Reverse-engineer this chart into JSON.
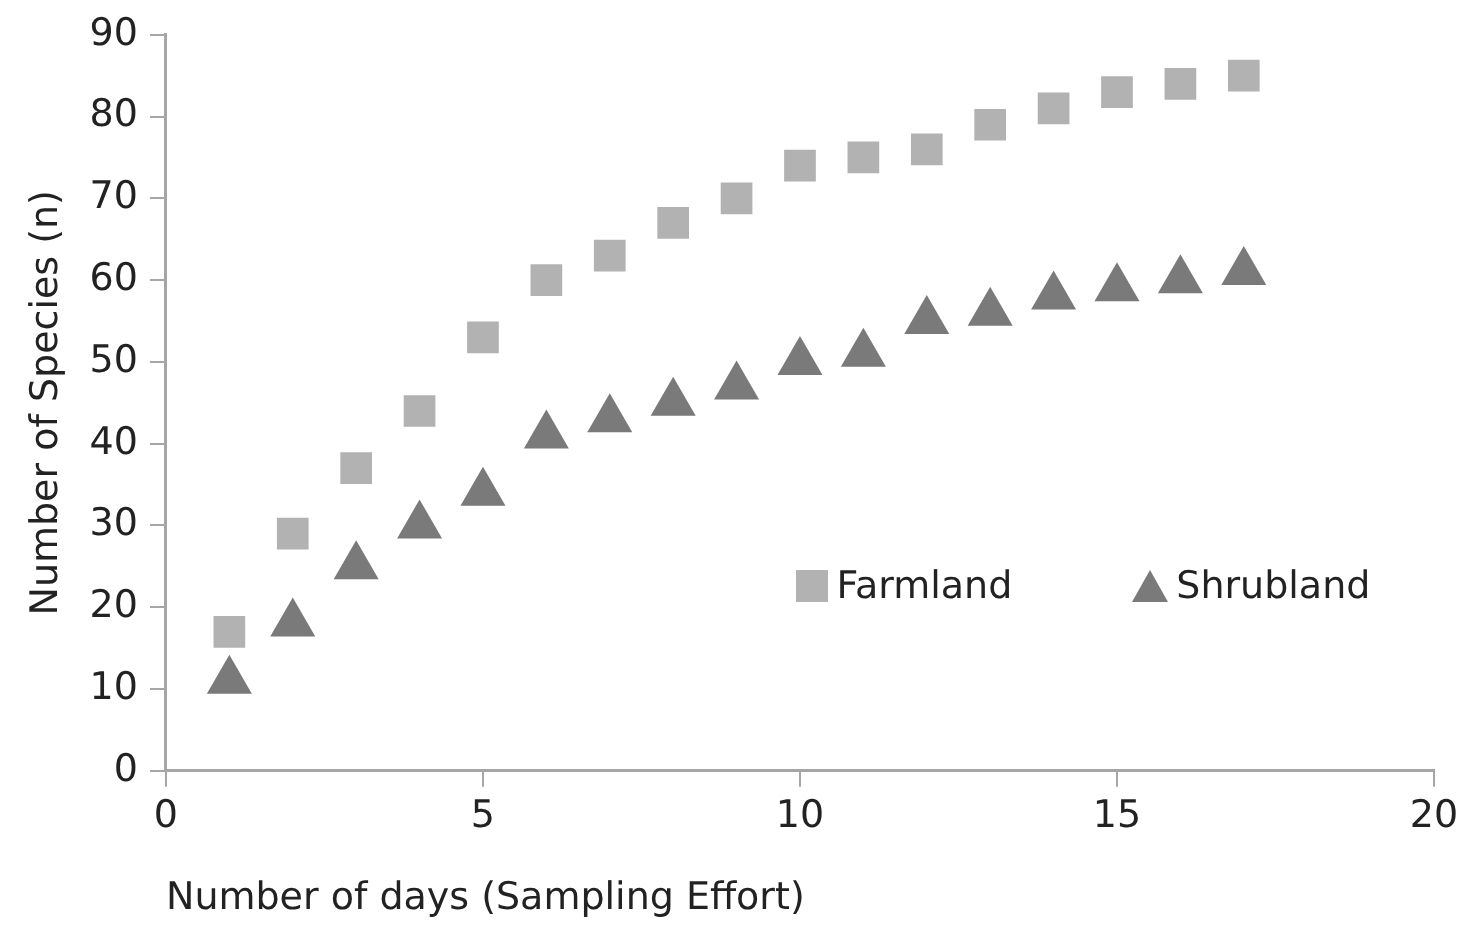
{
  "chart_data": {
    "type": "scatter",
    "xlabel": "Number of days (Sampling Effort)",
    "ylabel": "Number of Species (n)",
    "x": [
      1,
      2,
      3,
      4,
      5,
      6,
      7,
      8,
      9,
      10,
      11,
      12,
      13,
      14,
      15,
      16,
      17
    ],
    "series": [
      {
        "name": "Farmland",
        "color": "#b2b2b2",
        "marker": "square",
        "values": [
          17,
          29,
          37,
          44,
          53,
          60,
          63,
          67,
          70,
          74,
          75,
          76,
          79,
          81,
          83,
          84,
          85
        ]
      },
      {
        "name": "Shrubland",
        "color": "#7a7a7a",
        "marker": "triangle",
        "values": [
          11,
          18,
          25,
          30,
          34,
          41,
          43,
          45,
          47,
          50,
          51,
          55,
          56,
          58,
          59,
          60,
          61
        ]
      }
    ],
    "xlim": [
      0,
      20
    ],
    "xticks": [
      0,
      5,
      10,
      15,
      20
    ],
    "ylim": [
      0,
      90
    ],
    "yticks": [
      0,
      10,
      20,
      30,
      40,
      50,
      60,
      70,
      80,
      90
    ],
    "grid": false,
    "legend": "bottom right"
  }
}
